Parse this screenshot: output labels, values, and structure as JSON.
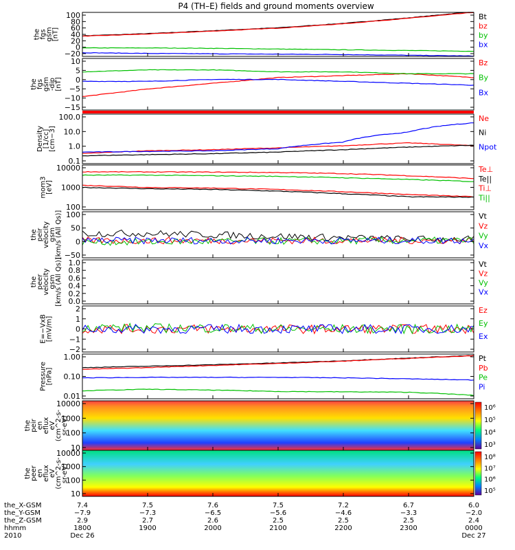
{
  "title": "P4 (TH–E) fields and ground moments overview",
  "panels": [
    {
      "ylabel": [
        "the",
        "fgs",
        "gsm",
        "[nT]"
      ],
      "ticks": [
        "100",
        "80",
        "60",
        "40",
        "20",
        "0",
        "−20"
      ],
      "legend": [
        {
          "t": "Bt",
          "c": "#000000"
        },
        {
          "t": "bz",
          "c": "#ff0000"
        },
        {
          "t": "by",
          "c": "#00c000"
        },
        {
          "t": "bx",
          "c": "#0000ff"
        }
      ]
    },
    {
      "ylabel": [
        "the",
        "fgs",
        "gsm",
        "-dip",
        "[nT]"
      ],
      "ticks": [
        "10",
        "5",
        "0",
        "−5",
        "−10",
        "−15"
      ],
      "legend": [
        {
          "t": "Bz",
          "c": "#ff0000"
        },
        {
          "t": "By",
          "c": "#00c000"
        },
        {
          "t": "Bx",
          "c": "#0000ff"
        }
      ]
    },
    {
      "ylabel": [
        "Density",
        "[1/cc]",
        "[cm−3]"
      ],
      "ticks": [
        "100.0",
        "10.0",
        "1.0",
        "0.1"
      ],
      "legend": [
        {
          "t": "Ne",
          "c": "#ff0000"
        },
        {
          "t": "Ni",
          "c": "#000000"
        },
        {
          "t": "Npot",
          "c": "#0000ff"
        }
      ]
    },
    {
      "ylabel": [
        "mom3",
        "[eV]"
      ],
      "ticks": [
        "10000",
        "1000",
        "100"
      ],
      "legend": [
        {
          "t": "Te⊥",
          "c": "#ff0000"
        },
        {
          "t": "Te||",
          "c": "#000000"
        },
        {
          "t": "Ti⊥",
          "c": "#ff0000"
        },
        {
          "t": "Ti||",
          "c": "#00c000"
        }
      ]
    },
    {
      "ylabel": [
        "the",
        "peir",
        "velocity",
        "gsm",
        "[km/s (All Qs)]"
      ],
      "ticks": [
        "100",
        "50",
        "0",
        "−50"
      ],
      "legend": [
        {
          "t": "Vt",
          "c": "#000000"
        },
        {
          "t": "Vz",
          "c": "#ff0000"
        },
        {
          "t": "Vy",
          "c": "#00c000"
        },
        {
          "t": "Vx",
          "c": "#0000ff"
        }
      ]
    },
    {
      "ylabel": [
        "the",
        "peer",
        "velocity",
        "gsm",
        "[km/s (All Qs)]"
      ],
      "ticks": [
        "1.0",
        "0.8",
        "0.6",
        "0.4",
        "0.2",
        "0.0"
      ],
      "legend": [
        {
          "t": "Vt",
          "c": "#000000"
        },
        {
          "t": "Vz",
          "c": "#ff0000"
        },
        {
          "t": "Vy",
          "c": "#00c000"
        },
        {
          "t": "Vx",
          "c": "#0000ff"
        }
      ]
    },
    {
      "ylabel": [
        "E=−VxB",
        "[mV/m]"
      ],
      "ticks": [
        "2",
        "1",
        "0",
        "−1",
        "−2"
      ],
      "legend": [
        {
          "t": "Ez",
          "c": "#ff0000"
        },
        {
          "t": "Ey",
          "c": "#00c000"
        },
        {
          "t": "Ex",
          "c": "#0000ff"
        }
      ]
    },
    {
      "ylabel": [
        "Pressure",
        "[nPa]"
      ],
      "ticks": [
        "1.00",
        "0.10",
        "0.01"
      ],
      "legend": [
        {
          "t": "Pt",
          "c": "#000000"
        },
        {
          "t": "Pb",
          "c": "#ff0000"
        },
        {
          "t": "Pe",
          "c": "#00c000"
        },
        {
          "t": "Pi",
          "c": "#0000ff"
        }
      ]
    },
    {
      "ylabel": [
        "the",
        "peir",
        "en",
        "eflux",
        "eV",
        "(cm^2-s-",
        "sr-eV)"
      ],
      "ticks": [
        "10000",
        "1000",
        "100",
        "10"
      ],
      "cbar": [
        "10⁶",
        "10⁵",
        "10⁴",
        "10³"
      ]
    },
    {
      "ylabel": [
        "the",
        "peer",
        "en",
        "eflux",
        "eV",
        "(cm^2-s-",
        "sr-eV)"
      ],
      "ticks": [
        "10000",
        "1000",
        "100",
        "10"
      ],
      "cbar": [
        "10⁸",
        "10⁷",
        "10⁶",
        "10⁵"
      ]
    }
  ],
  "xaxis": {
    "row_labels": [
      "the_X-GSM",
      "the_Y-GSM",
      "the_Z-GSM",
      "hhmm",
      "2010"
    ],
    "columns": [
      [
        "7.4",
        "−7.9",
        "2.9",
        "1800",
        "Dec 26"
      ],
      [
        "7.5",
        "−7.3",
        "2.7",
        "1900",
        ""
      ],
      [
        "7.6",
        "−6.5",
        "2.6",
        "2000",
        ""
      ],
      [
        "7.5",
        "−5.6",
        "2.5",
        "2100",
        ""
      ],
      [
        "7.2",
        "−4.6",
        "2.5",
        "2200",
        ""
      ],
      [
        "6.7",
        "−3.3",
        "2.5",
        "2300",
        ""
      ],
      [
        "6.0",
        "−2.0",
        "2.4",
        "0000",
        "Dec 27"
      ]
    ]
  },
  "chart_data": {
    "type": "line",
    "title": "P4 (TH–E) fields and ground moments overview",
    "x_unit": "hhmm",
    "x_range": [
      "2010 Dec 26 1800",
      "2010 Dec 27 0000"
    ],
    "x_ticks": [
      "1800",
      "1900",
      "2000",
      "2100",
      "2200",
      "2300",
      "0000"
    ],
    "panels": [
      {
        "name": "the fgs gsm [nT]",
        "ylim": [
          -20,
          100
        ],
        "scale": "linear",
        "series": [
          {
            "name": "Bt",
            "x": [
              18,
              19,
              20,
              21,
              22,
              23,
              24
            ],
            "y": [
              36,
              42,
              50,
              58,
              70,
              85,
              102
            ]
          },
          {
            "name": "bz",
            "x": [
              18,
              19,
              20,
              21,
              22,
              23,
              24
            ],
            "y": [
              35,
              41,
              49,
              57,
              69,
              84,
              100
            ]
          },
          {
            "name": "by",
            "x": [
              18,
              19,
              20,
              21,
              22,
              23,
              24
            ],
            "y": [
              3,
              3,
              2,
              0,
              -2,
              -4,
              -6
            ]
          },
          {
            "name": "bx",
            "x": [
              18,
              19,
              20,
              21,
              22,
              23,
              24
            ],
            "y": [
              -10,
              -12,
              -13,
              -14,
              -15,
              -17,
              -19
            ]
          }
        ]
      },
      {
        "name": "the fgs gsm -dip [nT]",
        "ylim": [
          -17,
          10
        ],
        "scale": "linear",
        "series": [
          {
            "name": "Bz",
            "x": [
              18,
              19,
              20,
              21,
              22,
              23,
              24
            ],
            "y": [
              -10,
              -6,
              -3,
              0,
              1,
              2,
              0
            ]
          },
          {
            "name": "By",
            "x": [
              18,
              19,
              20,
              21,
              22,
              23,
              24
            ],
            "y": [
              3,
              4,
              4,
              3,
              3,
              2,
              2
            ]
          },
          {
            "name": "Bx",
            "x": [
              18,
              19,
              20,
              21,
              22,
              23,
              24
            ],
            "y": [
              -2,
              -2,
              -1,
              -1,
              -2,
              -3,
              -4
            ]
          }
        ]
      },
      {
        "name": "Density [1/cc]",
        "ylim": [
          0.1,
          100
        ],
        "scale": "log",
        "series": [
          {
            "name": "Ne",
            "x": [
              18,
              19,
              20,
              21,
              22,
              23,
              24
            ],
            "y": [
              0.4,
              0.6,
              0.7,
              0.9,
              1.2,
              1.8,
              1.2
            ]
          },
          {
            "name": "Ni",
            "x": [
              18,
              19,
              20,
              21,
              22,
              23,
              24
            ],
            "y": [
              0.3,
              0.35,
              0.4,
              0.5,
              0.7,
              1.0,
              1.3
            ]
          },
          {
            "name": "Npot",
            "x": [
              18,
              19,
              20,
              21,
              22,
              23,
              24
            ],
            "y": [
              0.5,
              0.55,
              0.6,
              0.8,
              2,
              8,
              30
            ]
          }
        ]
      },
      {
        "name": "mom3 [eV]",
        "ylim": [
          50,
          10000
        ],
        "scale": "log",
        "series": [
          {
            "name": "Te⊥",
            "x": [
              18,
              19,
              20,
              21,
              22,
              23,
              24
            ],
            "y": [
              900,
              700,
              650,
              550,
              420,
              300,
              230
            ]
          },
          {
            "name": "Te||",
            "x": [
              18,
              19,
              20,
              21,
              22,
              23,
              24
            ],
            "y": [
              700,
              600,
              550,
              450,
              330,
              230,
              220
            ]
          },
          {
            "name": "Ti⊥",
            "x": [
              18,
              19,
              20,
              21,
              22,
              23,
              24
            ],
            "y": [
              4500,
              4400,
              4300,
              4100,
              3600,
              2800,
              2000
            ]
          },
          {
            "name": "Ti||",
            "x": [
              18,
              19,
              20,
              21,
              22,
              23,
              24
            ],
            "y": [
              3000,
              3000,
              2800,
              2600,
              2200,
              1800,
              1400
            ]
          }
        ]
      },
      {
        "name": "the peir velocity gsm [km/s (All Qs)]",
        "ylim": [
          -60,
          100
        ],
        "scale": "linear",
        "series": [
          {
            "name": "Vt",
            "x": [
              18,
              19,
              20,
              21,
              22,
              23,
              24
            ],
            "y": [
              25,
              25,
              20,
              15,
              10,
              5,
              5
            ]
          },
          {
            "name": "Vz",
            "x": [
              18,
              19,
              20,
              21,
              22,
              23,
              24
            ],
            "y": [
              0,
              0,
              0,
              0,
              0,
              0,
              0
            ]
          },
          {
            "name": "Vy",
            "x": [
              18,
              19,
              20,
              21,
              22,
              23,
              24
            ],
            "y": [
              -5,
              -5,
              -3,
              -2,
              -1,
              0,
              0
            ]
          },
          {
            "name": "Vx",
            "x": [
              18,
              19,
              20,
              21,
              22,
              23,
              24
            ],
            "y": [
              0,
              0,
              0,
              0,
              0,
              0,
              0
            ]
          }
        ]
      },
      {
        "name": "the peer velocity gsm [km/s (All Qs)]",
        "ylim": [
          0,
          1
        ],
        "scale": "linear",
        "series": []
      },
      {
        "name": "E=−VxB [mV/m]",
        "ylim": [
          -2.5,
          2.5
        ],
        "scale": "linear",
        "series": [
          {
            "name": "Ez",
            "x": [
              18,
              19,
              20,
              21,
              22,
              23,
              24
            ],
            "y": [
              0,
              0,
              0,
              0,
              0,
              0,
              0
            ]
          },
          {
            "name": "Ey",
            "x": [
              18,
              19,
              20,
              21,
              22,
              23,
              24
            ],
            "y": [
              0.2,
              0.1,
              0.1,
              0,
              0,
              0,
              0
            ]
          },
          {
            "name": "Ex",
            "x": [
              18,
              19,
              20,
              21,
              22,
              23,
              24
            ],
            "y": [
              0,
              0,
              0,
              0,
              0,
              0,
              0
            ]
          }
        ]
      },
      {
        "name": "Pressure [nPa]",
        "ylim": [
          0.006,
          5
        ],
        "scale": "log",
        "series": [
          {
            "name": "Pt",
            "x": [
              18,
              19,
              20,
              21,
              22,
              23,
              24
            ],
            "y": [
              0.65,
              0.8,
              1.0,
              1.3,
              1.8,
              2.7,
              4.0
            ]
          },
          {
            "name": "Pb",
            "x": [
              18,
              19,
              20,
              21,
              22,
              23,
              24
            ],
            "y": [
              0.5,
              0.65,
              0.9,
              1.2,
              1.7,
              2.6,
              3.9
            ]
          },
          {
            "name": "Pe",
            "x": [
              18,
              19,
              20,
              21,
              22,
              23,
              24
            ],
            "y": [
              0.02,
              0.025,
              0.022,
              0.018,
              0.017,
              0.016,
              0.01
            ]
          },
          {
            "name": "Pi",
            "x": [
              18,
              19,
              20,
              21,
              22,
              23,
              24
            ],
            "y": [
              0.14,
              0.15,
              0.15,
              0.15,
              0.14,
              0.12,
              0.1
            ]
          }
        ]
      }
    ]
  }
}
